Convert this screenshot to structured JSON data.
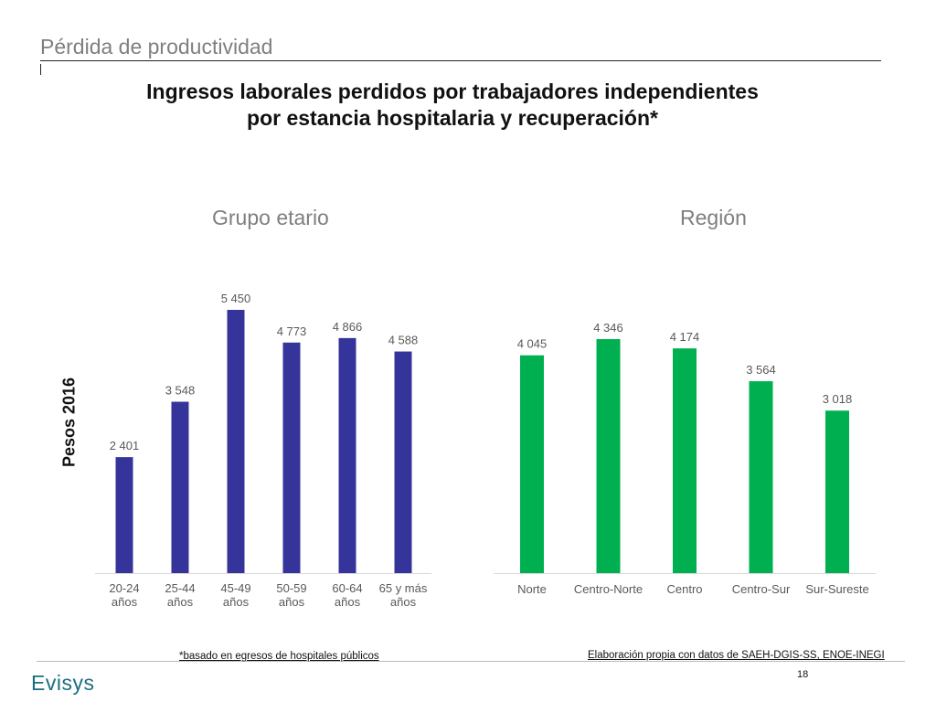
{
  "section_title": "Pérdida de productividad",
  "main_title_line1": "Ingresos laborales perdidos por trabajadores independientes",
  "main_title_line2": "por estancia hospitalaria y recuperación*",
  "y_axis_label": "Pesos 2016",
  "footnote_left": "*basado en egresos de hospitales públicos",
  "footnote_right": "Elaboración propia con datos de SAEH-DGIS-SS, ENOE-INEGI",
  "logo_text": "Evisys",
  "page_number": "18",
  "chart_data": [
    {
      "type": "bar",
      "title": "Grupo etario",
      "ylabel": "Pesos 2016",
      "categories": [
        [
          "20-24",
          "años"
        ],
        [
          "25-44",
          "años"
        ],
        [
          "45-49",
          "años"
        ],
        [
          "50-59",
          "años"
        ],
        [
          "60-64",
          "años"
        ],
        [
          "65 y más",
          "años"
        ]
      ],
      "values": [
        2401,
        3548,
        5450,
        4773,
        4866,
        4588
      ],
      "value_labels": [
        "2 401",
        "3 548",
        "5 450",
        "4 773",
        "4 866",
        "4 588"
      ],
      "color": "#35349a",
      "grid": false
    },
    {
      "type": "bar",
      "title": "Región",
      "categories": [
        [
          "Norte"
        ],
        [
          "Centro-Norte"
        ],
        [
          "Centro"
        ],
        [
          "Centro-Sur"
        ],
        [
          "Sur-Sureste"
        ]
      ],
      "values": [
        4045,
        4346,
        4174,
        3564,
        3018
      ],
      "value_labels": [
        "4 045",
        "4 346",
        "4 174",
        "3 564",
        "3 018"
      ],
      "color": "#00b050",
      "grid": false
    }
  ]
}
